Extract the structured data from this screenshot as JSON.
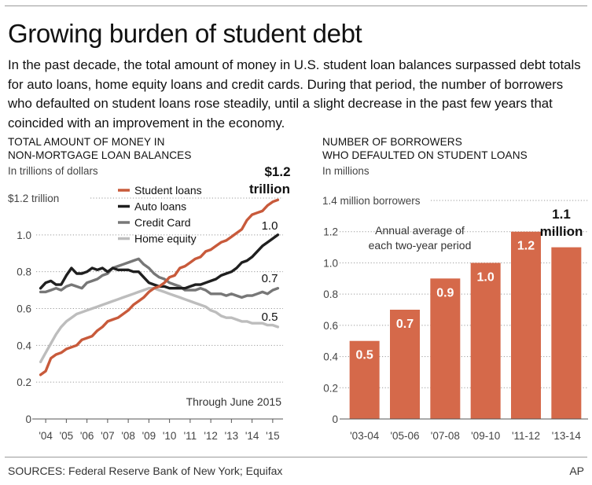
{
  "headline": "Growing burden of student debt",
  "intro": "In the past decade, the total amount of money in U.S. student loan balances surpassed debt totals for auto loans, home equity loans and credit cards. During that period, the number of borrowers who defaulted on student loans rose steadily, until a slight decrease in the past few years that coincided with an improvement in the economy.",
  "left_panel": {
    "title_line1": "TOTAL AMOUNT OF MONEY IN",
    "title_line2": "NON-MORTGAGE LOAN BALANCES",
    "subtitle": "In trillions of dollars",
    "note": "Through June 2015",
    "top_label": "$1.2 trillion",
    "callouts": {
      "student_line1": "$1.2",
      "student_line2": "trillion",
      "auto": "1.0",
      "credit": "0.7",
      "home": "0.5"
    }
  },
  "right_panel": {
    "title_line1": "NUMBER OF BORROWERS",
    "title_line2": "WHO DEFAULTED ON STUDENT LOANS",
    "subtitle": "In millions",
    "top_label": "1.4 million borrowers",
    "note_line1": "Annual average of",
    "note_line2": "each two-year period",
    "callout_line1": "1.1",
    "callout_line2": "million"
  },
  "colors": {
    "student": "#c85a3b",
    "auto": "#1f1f1f",
    "credit": "#777777",
    "home": "#bdbdbd",
    "bar": "#d5694a",
    "grid": "#9a9a9a",
    "axis": "#555555"
  },
  "footer": {
    "sources": "SOURCES: Federal Reserve Bank of New York; Equifax",
    "credit": "AP"
  },
  "chart_data": [
    {
      "type": "line",
      "ylim": [
        0,
        1.2
      ],
      "yticks": [
        0,
        0.2,
        0.4,
        0.6,
        0.8,
        1.0,
        1.2
      ],
      "ytick_labels": [
        "0",
        "0.2",
        "0.4",
        "0.6",
        "0.8",
        "1.0",
        "$1.2 trillion"
      ],
      "xlim": [
        2003.5,
        2015.5
      ],
      "xticks": [
        2004,
        2005,
        2006,
        2007,
        2008,
        2009,
        2010,
        2011,
        2012,
        2013,
        2014,
        2015
      ],
      "xtick_labels": [
        "'04",
        "'05",
        "'06",
        "'07",
        "'08",
        "'09",
        "'10",
        "'11",
        "'12",
        "'13",
        "'14",
        "'15"
      ],
      "legend_position": "top-center",
      "series": [
        {
          "name": "Student loans",
          "color": "#c85a3b",
          "x": [
            2003.75,
            2004.0,
            2004.25,
            2004.5,
            2004.75,
            2005.0,
            2005.25,
            2005.5,
            2005.75,
            2006.0,
            2006.25,
            2006.5,
            2006.75,
            2007.0,
            2007.25,
            2007.5,
            2007.75,
            2008.0,
            2008.25,
            2008.5,
            2008.75,
            2009.0,
            2009.25,
            2009.5,
            2009.75,
            2010.0,
            2010.25,
            2010.5,
            2010.75,
            2011.0,
            2011.25,
            2011.5,
            2011.75,
            2012.0,
            2012.25,
            2012.5,
            2012.75,
            2013.0,
            2013.25,
            2013.5,
            2013.75,
            2014.0,
            2014.25,
            2014.5,
            2014.75,
            2015.0,
            2015.25
          ],
          "y": [
            0.24,
            0.26,
            0.33,
            0.35,
            0.36,
            0.38,
            0.39,
            0.4,
            0.43,
            0.44,
            0.45,
            0.48,
            0.5,
            0.53,
            0.54,
            0.55,
            0.57,
            0.59,
            0.62,
            0.64,
            0.66,
            0.69,
            0.71,
            0.72,
            0.74,
            0.77,
            0.78,
            0.82,
            0.83,
            0.85,
            0.87,
            0.88,
            0.91,
            0.92,
            0.94,
            0.96,
            0.97,
            0.99,
            1.01,
            1.03,
            1.08,
            1.11,
            1.12,
            1.13,
            1.16,
            1.18,
            1.19
          ]
        },
        {
          "name": "Auto loans",
          "color": "#1f1f1f",
          "x": [
            2003.75,
            2004.0,
            2004.25,
            2004.5,
            2004.75,
            2005.0,
            2005.25,
            2005.5,
            2005.75,
            2006.0,
            2006.25,
            2006.5,
            2006.75,
            2007.0,
            2007.25,
            2007.5,
            2007.75,
            2008.0,
            2008.25,
            2008.5,
            2008.75,
            2009.0,
            2009.25,
            2009.5,
            2009.75,
            2010.0,
            2010.25,
            2010.5,
            2010.75,
            2011.0,
            2011.25,
            2011.5,
            2011.75,
            2012.0,
            2012.25,
            2012.5,
            2012.75,
            2013.0,
            2013.25,
            2013.5,
            2013.75,
            2014.0,
            2014.25,
            2014.5,
            2014.75,
            2015.0,
            2015.25
          ],
          "y": [
            0.71,
            0.74,
            0.75,
            0.73,
            0.73,
            0.78,
            0.82,
            0.79,
            0.79,
            0.8,
            0.82,
            0.81,
            0.82,
            0.8,
            0.82,
            0.81,
            0.81,
            0.81,
            0.8,
            0.8,
            0.77,
            0.74,
            0.73,
            0.72,
            0.72,
            0.71,
            0.71,
            0.71,
            0.71,
            0.72,
            0.73,
            0.73,
            0.74,
            0.75,
            0.76,
            0.78,
            0.79,
            0.8,
            0.82,
            0.85,
            0.86,
            0.88,
            0.91,
            0.94,
            0.96,
            0.98,
            1.0
          ]
        },
        {
          "name": "Credit Card",
          "color": "#777777",
          "x": [
            2003.75,
            2004.0,
            2004.25,
            2004.5,
            2004.75,
            2005.0,
            2005.25,
            2005.5,
            2005.75,
            2006.0,
            2006.25,
            2006.5,
            2006.75,
            2007.0,
            2007.25,
            2007.5,
            2007.75,
            2008.0,
            2008.25,
            2008.5,
            2008.75,
            2009.0,
            2009.25,
            2009.5,
            2009.75,
            2010.0,
            2010.25,
            2010.5,
            2010.75,
            2011.0,
            2011.25,
            2011.5,
            2011.75,
            2012.0,
            2012.25,
            2012.5,
            2012.75,
            2013.0,
            2013.25,
            2013.5,
            2013.75,
            2014.0,
            2014.25,
            2014.5,
            2014.75,
            2015.0,
            2015.25
          ],
          "y": [
            0.69,
            0.69,
            0.7,
            0.71,
            0.7,
            0.72,
            0.73,
            0.72,
            0.71,
            0.74,
            0.75,
            0.76,
            0.78,
            0.79,
            0.82,
            0.83,
            0.84,
            0.85,
            0.86,
            0.87,
            0.84,
            0.82,
            0.79,
            0.77,
            0.76,
            0.74,
            0.73,
            0.72,
            0.7,
            0.7,
            0.7,
            0.71,
            0.7,
            0.68,
            0.68,
            0.68,
            0.67,
            0.68,
            0.67,
            0.66,
            0.67,
            0.67,
            0.68,
            0.69,
            0.68,
            0.7,
            0.71
          ]
        },
        {
          "name": "Home equity",
          "color": "#bdbdbd",
          "x": [
            2003.75,
            2004.0,
            2004.25,
            2004.5,
            2004.75,
            2005.0,
            2005.25,
            2005.5,
            2005.75,
            2006.0,
            2006.25,
            2006.5,
            2006.75,
            2007.0,
            2007.25,
            2007.5,
            2007.75,
            2008.0,
            2008.25,
            2008.5,
            2008.75,
            2009.0,
            2009.25,
            2009.5,
            2009.75,
            2010.0,
            2010.25,
            2010.5,
            2010.75,
            2011.0,
            2011.25,
            2011.5,
            2011.75,
            2012.0,
            2012.25,
            2012.5,
            2012.75,
            2013.0,
            2013.25,
            2013.5,
            2013.75,
            2014.0,
            2014.25,
            2014.5,
            2014.75,
            2015.0,
            2015.25
          ],
          "y": [
            0.31,
            0.36,
            0.41,
            0.46,
            0.5,
            0.53,
            0.55,
            0.57,
            0.58,
            0.59,
            0.6,
            0.61,
            0.62,
            0.63,
            0.64,
            0.65,
            0.66,
            0.67,
            0.68,
            0.69,
            0.7,
            0.71,
            0.71,
            0.7,
            0.69,
            0.68,
            0.67,
            0.66,
            0.65,
            0.64,
            0.63,
            0.62,
            0.61,
            0.59,
            0.58,
            0.56,
            0.55,
            0.55,
            0.54,
            0.53,
            0.53,
            0.52,
            0.52,
            0.52,
            0.51,
            0.51,
            0.5
          ]
        }
      ]
    },
    {
      "type": "bar",
      "ylim": [
        0,
        1.4
      ],
      "yticks": [
        0,
        0.2,
        0.4,
        0.6,
        0.8,
        1.0,
        1.2,
        1.4
      ],
      "ytick_labels": [
        "0",
        "0.2",
        "0.4",
        "0.6",
        "0.8",
        "1.0",
        "1.2",
        "1.4 million borrowers"
      ],
      "categories": [
        "'03-04",
        "'05-06",
        "'07-08",
        "'09-10",
        "'11-12",
        "'13-14"
      ],
      "values": [
        0.5,
        0.7,
        0.9,
        1.0,
        1.2,
        1.1
      ],
      "data_labels": [
        "0.5",
        "0.7",
        "0.9",
        "1.0",
        "1.2",
        ""
      ],
      "color": "#d5694a"
    }
  ]
}
